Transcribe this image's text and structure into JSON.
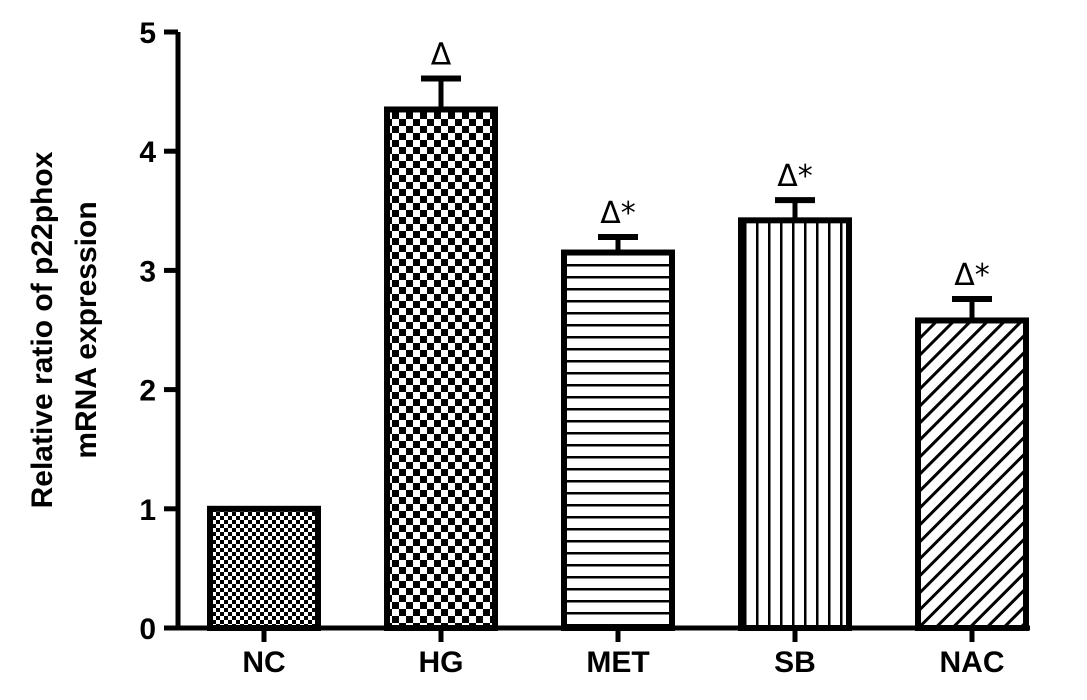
{
  "chart_data": {
    "type": "bar",
    "categories": [
      "NC",
      "HG",
      "MET",
      "SB",
      "NAC"
    ],
    "values": [
      1.0,
      4.35,
      3.15,
      3.42,
      2.58
    ],
    "error": [
      0,
      0.26,
      0.13,
      0.17,
      0.18
    ],
    "annotations": [
      "",
      "Δ",
      "Δ*",
      "Δ*",
      "Δ*"
    ],
    "ylabel_line1": "Relative ratio of p22phox",
    "ylabel_line2": "mRNA expression",
    "ylim": [
      0,
      5
    ],
    "yticks": [
      "0",
      "1",
      "2",
      "3",
      "4",
      "5"
    ],
    "patterns": [
      "fine-checker",
      "checker",
      "horizontal-stripes",
      "vertical-stripes",
      "diagonal-stripes"
    ],
    "bar_color": "#000000",
    "grid": false,
    "legend": "none"
  }
}
